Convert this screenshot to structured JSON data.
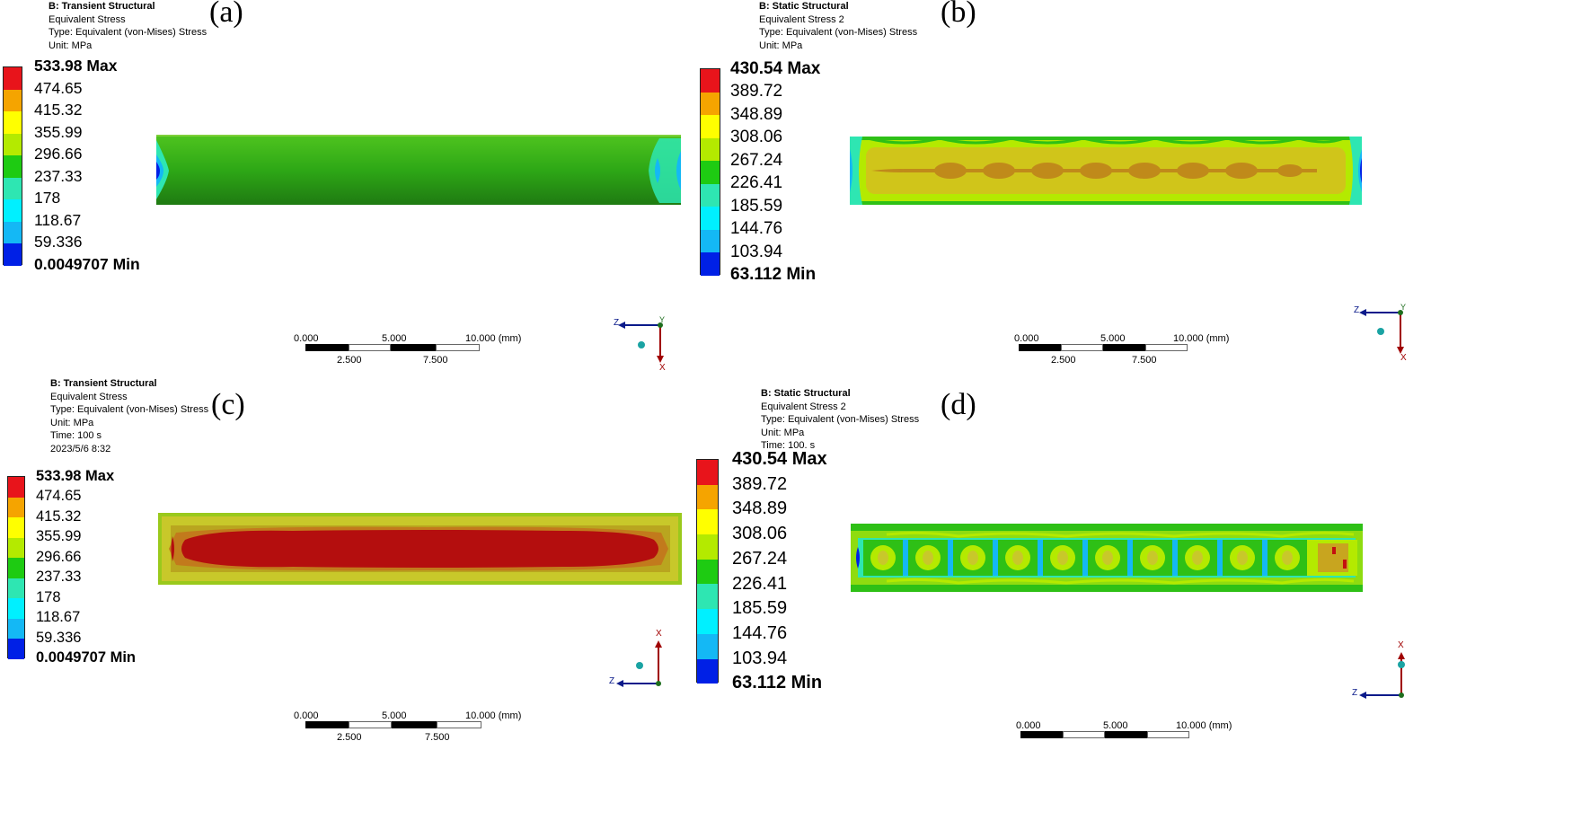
{
  "legend_colors": [
    "#e8141b",
    "#f5a400",
    "#ffff00",
    "#b4ea00",
    "#1ecb12",
    "#2ee6b2",
    "#00f0ff",
    "#14b8f5",
    "#0020e6"
  ],
  "panels": [
    {
      "id": "a",
      "label": "(a)",
      "header": [
        "B: Transient Structural",
        "Equivalent Stress",
        "Type: Equivalent (von-Mises) Stress",
        "Unit: MPa"
      ],
      "legend": [
        "533.98 Max",
        "474.65",
        "415.32",
        "355.99",
        "296.66",
        "237.33",
        "178",
        "118.67",
        "59.336",
        "0.0049707 Min"
      ],
      "scale": {
        "top": [
          "0.000",
          "5.000",
          "10.000 (mm)"
        ],
        "bottom": [
          "2.500",
          "7.500"
        ]
      },
      "axes": [
        "Z",
        "Y",
        "X"
      ]
    },
    {
      "id": "b",
      "label": "(b)",
      "header": [
        "B: Static Structural",
        "Equivalent Stress 2",
        "Type: Equivalent (von-Mises) Stress",
        "Unit: MPa"
      ],
      "legend": [
        "430.54 Max",
        "389.72",
        "348.89",
        "308.06",
        "267.24",
        "226.41",
        "185.59",
        "144.76",
        "103.94",
        "63.112 Min"
      ],
      "scale": {
        "top": [
          "0.000",
          "5.000",
          "10.000 (mm)"
        ],
        "bottom": [
          "2.500",
          "7.500"
        ]
      },
      "axes": [
        "Z",
        "Y",
        "X"
      ]
    },
    {
      "id": "c",
      "label": "(c)",
      "header": [
        "B: Transient Structural",
        "Equivalent Stress",
        "Type: Equivalent (von-Mises) Stress",
        "Unit: MPa",
        "Time: 100 s",
        "2023/5/6 8:32"
      ],
      "legend": [
        "533.98 Max",
        "474.65",
        "415.32",
        "355.99",
        "296.66",
        "237.33",
        "178",
        "118.67",
        "59.336",
        "0.0049707 Min"
      ],
      "scale": {
        "top": [
          "0.000",
          "5.000",
          "10.000 (mm)"
        ],
        "bottom": [
          "2.500",
          "7.500"
        ]
      },
      "axes": [
        "X",
        "Z"
      ]
    },
    {
      "id": "d",
      "label": "(d)",
      "header": [
        "B: Static Structural",
        "Equivalent Stress 2",
        "Type: Equivalent (von-Mises) Stress",
        "Unit: MPa",
        "Time: 100. s"
      ],
      "legend": [
        "430.54 Max",
        "389.72",
        "348.89",
        "308.06",
        "267.24",
        "226.41",
        "185.59",
        "144.76",
        "103.94",
        "63.112 Min"
      ],
      "scale": {
        "top": [
          "0.000",
          "5.000",
          "10.000 (mm)"
        ],
        "bottom": []
      },
      "axes": [
        "X",
        "Z"
      ]
    }
  ]
}
